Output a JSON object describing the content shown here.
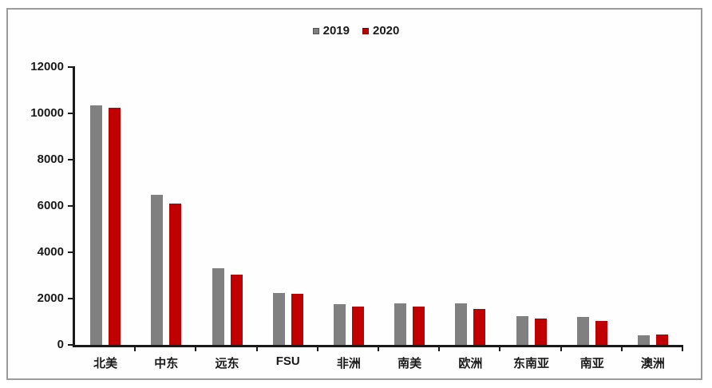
{
  "chart_data": {
    "type": "bar",
    "title": "",
    "xlabel": "",
    "ylabel": "",
    "categories": [
      "北美",
      "中东",
      "远东",
      "FSU",
      "非洲",
      "南美",
      "欧洲",
      "东南亚",
      "南亚",
      "澳洲"
    ],
    "series": [
      {
        "name": "2019",
        "color": "#808080",
        "values": [
          10350,
          6500,
          3300,
          2250,
          1750,
          1800,
          1800,
          1250,
          1200,
          420
        ]
      },
      {
        "name": "2020",
        "color": "#C00000",
        "values": [
          10250,
          6100,
          3050,
          2200,
          1650,
          1650,
          1550,
          1150,
          1050,
          450
        ]
      }
    ],
    "ylim": [
      0,
      12000
    ],
    "yticks": [
      0,
      2000,
      4000,
      6000,
      8000,
      10000,
      12000
    ],
    "grid": false,
    "legend_position": "top-center"
  },
  "colors": {
    "bar_2019": "#808080",
    "bar_2020": "#C00000",
    "axis": "#1a1a1a",
    "text": "#1a1a1a",
    "frame_border": "#9b9b9b",
    "background": "#ffffff"
  }
}
